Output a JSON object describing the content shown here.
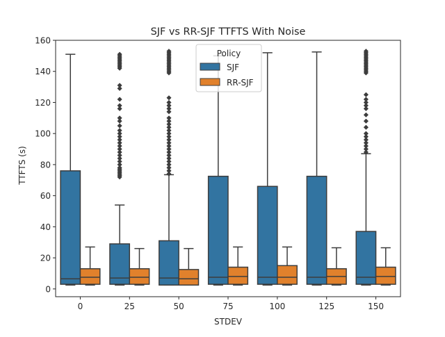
{
  "chart_data": {
    "type": "box",
    "title": "SJF vs RR-SJF TTFTS With Noise",
    "xlabel": "STDEV",
    "ylabel": "TTFTS (s)",
    "categories": [
      "0",
      "25",
      "50",
      "75",
      "100",
      "125",
      "150"
    ],
    "ylim": [
      -5,
      160
    ],
    "yticks": [
      0,
      20,
      40,
      60,
      80,
      100,
      120,
      140,
      160
    ],
    "grid": false,
    "legend": {
      "title": "Policy",
      "placement": "top-center"
    },
    "series": [
      {
        "name": "SJF",
        "color": "#3274a1",
        "boxes": [
          {
            "q1": 3,
            "median": 6.5,
            "q3": 76,
            "whisker_low": 2.5,
            "whisker_high": 151,
            "outliers": []
          },
          {
            "q1": 3,
            "median": 7,
            "q3": 29,
            "whisker_low": 2.5,
            "whisker_high": 54,
            "outliers": [
              72,
              73,
              74,
              75,
              76,
              77,
              78,
              80,
              82,
              84,
              86,
              88,
              90,
              92,
              94,
              96,
              98,
              100,
              102,
              105,
              108,
              110,
              116,
              118,
              122,
              129,
              131,
              142,
              143,
              144,
              145,
              146,
              147,
              148,
              149,
              150,
              151
            ]
          },
          {
            "q1": 2.5,
            "median": 7,
            "q3": 31,
            "whisker_low": 2.5,
            "whisker_high": 73.5,
            "outliers": [
              74,
              76,
              78,
              80,
              82,
              84,
              86,
              88,
              90,
              92,
              94,
              96,
              98,
              100,
              102,
              104,
              106,
              108,
              110,
              114,
              116,
              118,
              120,
              123,
              139,
              140,
              141,
              142,
              143,
              144,
              145,
              146,
              147,
              148,
              149,
              150,
              151,
              152,
              153
            ]
          },
          {
            "q1": 3,
            "median": 7.5,
            "q3": 72.5,
            "whisker_low": 2.5,
            "whisker_high": 150,
            "outliers": []
          },
          {
            "q1": 3,
            "median": 7.5,
            "q3": 66,
            "whisker_low": 2.5,
            "whisker_high": 152,
            "outliers": []
          },
          {
            "q1": 3,
            "median": 7.5,
            "q3": 72.5,
            "whisker_low": 2.5,
            "whisker_high": 152.5,
            "outliers": []
          },
          {
            "q1": 3,
            "median": 7.5,
            "q3": 37,
            "whisker_low": 2.5,
            "whisker_high": 87,
            "outliers": [
              88,
              90,
              92,
              94,
              96,
              98,
              100,
              104,
              108,
              112,
              116,
              118,
              120,
              122,
              125,
              139,
              140,
              141,
              142,
              143,
              144,
              145,
              146,
              147,
              148,
              149,
              150,
              151,
              152,
              153
            ]
          }
        ]
      },
      {
        "name": "RR-SJF",
        "color": "#e1812c",
        "boxes": [
          {
            "q1": 3,
            "median": 7.5,
            "q3": 13,
            "whisker_low": 2.5,
            "whisker_high": 27,
            "outliers": []
          },
          {
            "q1": 3,
            "median": 7.5,
            "q3": 13,
            "whisker_low": 2.5,
            "whisker_high": 26,
            "outliers": []
          },
          {
            "q1": 2.5,
            "median": 6.5,
            "q3": 12.5,
            "whisker_low": 2.5,
            "whisker_high": 26,
            "outliers": []
          },
          {
            "q1": 3,
            "median": 8,
            "q3": 14,
            "whisker_low": 2.5,
            "whisker_high": 27,
            "outliers": []
          },
          {
            "q1": 3,
            "median": 7.5,
            "q3": 15,
            "whisker_low": 2.5,
            "whisker_high": 27,
            "outliers": []
          },
          {
            "q1": 3,
            "median": 8,
            "q3": 13,
            "whisker_low": 2.5,
            "whisker_high": 26.5,
            "outliers": []
          },
          {
            "q1": 3,
            "median": 8,
            "q3": 14,
            "whisker_low": 2.5,
            "whisker_high": 26.5,
            "outliers": []
          }
        ]
      }
    ]
  }
}
